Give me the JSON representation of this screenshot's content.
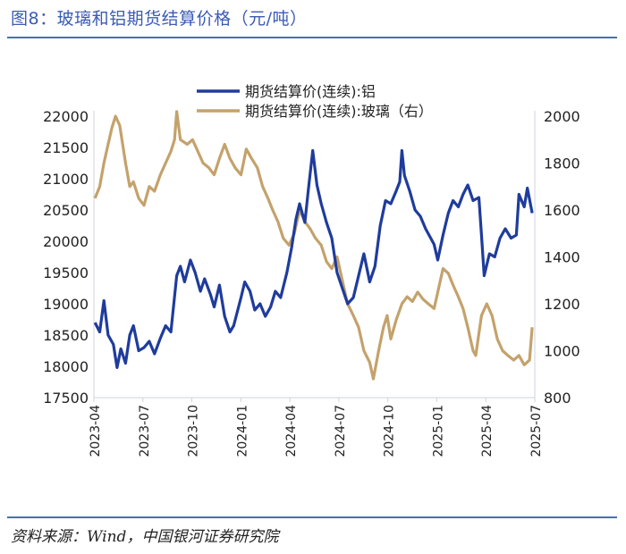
{
  "figure": {
    "title": "图8：玻璃和铝期货结算价格（元/吨）",
    "source": "资料来源：Wind，中国银河证券研究院"
  },
  "chart_data": {
    "type": "line",
    "x_tick_labels": [
      "2023-04",
      "2023-07",
      "2023-10",
      "2024-01",
      "2024-04",
      "2024-07",
      "2024-10",
      "2025-01",
      "2025-04",
      "2025-07"
    ],
    "x_range": [
      "2023-04-01",
      "2025-07-15"
    ],
    "y_left": {
      "min": 17500,
      "max": 22000,
      "ticks": [
        17500,
        18000,
        18500,
        19000,
        19500,
        20000,
        20500,
        21000,
        21500,
        22000
      ]
    },
    "y_right": {
      "min": 800,
      "max": 2000,
      "ticks": [
        800,
        1000,
        1200,
        1400,
        1600,
        1800,
        2000
      ]
    },
    "legend_position": "top",
    "series": [
      {
        "name": "期货结算价(连续):铝",
        "axis": "left",
        "color": "#1f3c9c",
        "points": [
          [
            "2023-04-03",
            18700
          ],
          [
            "2023-04-12",
            18550
          ],
          [
            "2023-04-20",
            19050
          ],
          [
            "2023-04-28",
            18500
          ],
          [
            "2023-05-08",
            18350
          ],
          [
            "2023-05-15",
            17980
          ],
          [
            "2023-05-22",
            18280
          ],
          [
            "2023-05-31",
            18050
          ],
          [
            "2023-06-08",
            18500
          ],
          [
            "2023-06-15",
            18650
          ],
          [
            "2023-06-25",
            18250
          ],
          [
            "2023-07-05",
            18300
          ],
          [
            "2023-07-15",
            18400
          ],
          [
            "2023-07-25",
            18200
          ],
          [
            "2023-08-05",
            18450
          ],
          [
            "2023-08-15",
            18650
          ],
          [
            "2023-08-25",
            18550
          ],
          [
            "2023-09-05",
            19450
          ],
          [
            "2023-09-12",
            19600
          ],
          [
            "2023-09-20",
            19350
          ],
          [
            "2023-10-01",
            19700
          ],
          [
            "2023-10-10",
            19500
          ],
          [
            "2023-10-20",
            19200
          ],
          [
            "2023-10-28",
            19400
          ],
          [
            "2023-11-08",
            19150
          ],
          [
            "2023-11-15",
            18950
          ],
          [
            "2023-11-25",
            19300
          ],
          [
            "2023-12-05",
            18800
          ],
          [
            "2023-12-15",
            18550
          ],
          [
            "2023-12-22",
            18650
          ],
          [
            "2024-01-05",
            19100
          ],
          [
            "2024-01-12",
            19350
          ],
          [
            "2024-01-22",
            19200
          ],
          [
            "2024-01-31",
            18900
          ],
          [
            "2024-02-10",
            19000
          ],
          [
            "2024-02-20",
            18800
          ],
          [
            "2024-03-01",
            18950
          ],
          [
            "2024-03-10",
            19200
          ],
          [
            "2024-03-20",
            19100
          ],
          [
            "2024-04-01",
            19500
          ],
          [
            "2024-04-10",
            19900
          ],
          [
            "2024-04-18",
            20350
          ],
          [
            "2024-04-25",
            20600
          ],
          [
            "2024-05-05",
            20300
          ],
          [
            "2024-05-12",
            20850
          ],
          [
            "2024-05-20",
            21450
          ],
          [
            "2024-05-28",
            20900
          ],
          [
            "2024-06-05",
            20600
          ],
          [
            "2024-06-15",
            20300
          ],
          [
            "2024-06-25",
            20050
          ],
          [
            "2024-07-05",
            19500
          ],
          [
            "2024-07-15",
            19250
          ],
          [
            "2024-07-25",
            19000
          ],
          [
            "2024-08-05",
            19100
          ],
          [
            "2024-08-15",
            19450
          ],
          [
            "2024-08-25",
            19800
          ],
          [
            "2024-09-05",
            19350
          ],
          [
            "2024-09-15",
            19600
          ],
          [
            "2024-09-25",
            20250
          ],
          [
            "2024-10-05",
            20650
          ],
          [
            "2024-10-15",
            20600
          ],
          [
            "2024-10-25",
            20800
          ],
          [
            "2024-11-01",
            20950
          ],
          [
            "2024-11-05",
            21450
          ],
          [
            "2024-11-10",
            21050
          ],
          [
            "2024-11-20",
            20800
          ],
          [
            "2024-11-30",
            20500
          ],
          [
            "2024-12-10",
            20400
          ],
          [
            "2024-12-20",
            20200
          ],
          [
            "2025-01-05",
            19950
          ],
          [
            "2025-01-12",
            19700
          ],
          [
            "2025-01-22",
            20100
          ],
          [
            "2025-02-01",
            20450
          ],
          [
            "2025-02-10",
            20650
          ],
          [
            "2025-02-20",
            20550
          ],
          [
            "2025-03-01",
            20750
          ],
          [
            "2025-03-10",
            20900
          ],
          [
            "2025-03-20",
            20650
          ],
          [
            "2025-03-31",
            20700
          ],
          [
            "2025-04-05",
            20100
          ],
          [
            "2025-04-10",
            19450
          ],
          [
            "2025-04-20",
            19800
          ],
          [
            "2025-04-30",
            19750
          ],
          [
            "2025-05-10",
            20050
          ],
          [
            "2025-05-20",
            20200
          ],
          [
            "2025-05-31",
            20050
          ],
          [
            "2025-06-10",
            20100
          ],
          [
            "2025-06-15",
            20750
          ],
          [
            "2025-06-25",
            20550
          ],
          [
            "2025-07-01",
            20850
          ],
          [
            "2025-07-10",
            20450
          ]
        ]
      },
      {
        "name": "期货结算价(连续):玻璃（右）",
        "axis": "right",
        "color": "#c4a26c",
        "points": [
          [
            "2023-04-03",
            1650
          ],
          [
            "2023-04-12",
            1700
          ],
          [
            "2023-04-20",
            1800
          ],
          [
            "2023-04-28",
            1880
          ],
          [
            "2023-05-05",
            1950
          ],
          [
            "2023-05-12",
            2000
          ],
          [
            "2023-05-20",
            1960
          ],
          [
            "2023-05-31",
            1800
          ],
          [
            "2023-06-08",
            1700
          ],
          [
            "2023-06-15",
            1720
          ],
          [
            "2023-06-25",
            1650
          ],
          [
            "2023-07-05",
            1620
          ],
          [
            "2023-07-15",
            1700
          ],
          [
            "2023-07-25",
            1680
          ],
          [
            "2023-08-05",
            1750
          ],
          [
            "2023-08-15",
            1800
          ],
          [
            "2023-08-25",
            1850
          ],
          [
            "2023-09-01",
            1900
          ],
          [
            "2023-09-05",
            2020
          ],
          [
            "2023-09-12",
            1900
          ],
          [
            "2023-09-25",
            1880
          ],
          [
            "2023-10-05",
            1900
          ],
          [
            "2023-10-15",
            1850
          ],
          [
            "2023-10-25",
            1800
          ],
          [
            "2023-11-05",
            1780
          ],
          [
            "2023-11-15",
            1750
          ],
          [
            "2023-11-25",
            1820
          ],
          [
            "2023-12-05",
            1880
          ],
          [
            "2023-12-15",
            1820
          ],
          [
            "2023-12-25",
            1780
          ],
          [
            "2024-01-05",
            1750
          ],
          [
            "2024-01-15",
            1860
          ],
          [
            "2024-01-25",
            1820
          ],
          [
            "2024-02-05",
            1780
          ],
          [
            "2024-02-15",
            1700
          ],
          [
            "2024-02-25",
            1650
          ],
          [
            "2024-03-05",
            1600
          ],
          [
            "2024-03-15",
            1550
          ],
          [
            "2024-03-25",
            1480
          ],
          [
            "2024-04-05",
            1450
          ],
          [
            "2024-04-15",
            1500
          ],
          [
            "2024-04-25",
            1600
          ],
          [
            "2024-05-05",
            1550
          ],
          [
            "2024-05-15",
            1520
          ],
          [
            "2024-05-25",
            1480
          ],
          [
            "2024-06-05",
            1450
          ],
          [
            "2024-06-15",
            1380
          ],
          [
            "2024-06-25",
            1350
          ],
          [
            "2024-07-05",
            1400
          ],
          [
            "2024-07-15",
            1300
          ],
          [
            "2024-07-25",
            1200
          ],
          [
            "2024-08-05",
            1150
          ],
          [
            "2024-08-15",
            1100
          ],
          [
            "2024-08-25",
            1000
          ],
          [
            "2024-09-05",
            950
          ],
          [
            "2024-09-12",
            880
          ],
          [
            "2024-09-22",
            1000
          ],
          [
            "2024-10-01",
            1100
          ],
          [
            "2024-10-08",
            1150
          ],
          [
            "2024-10-15",
            1050
          ],
          [
            "2024-10-25",
            1130
          ],
          [
            "2024-11-05",
            1200
          ],
          [
            "2024-11-15",
            1230
          ],
          [
            "2024-11-25",
            1210
          ],
          [
            "2024-12-05",
            1250
          ],
          [
            "2024-12-15",
            1220
          ],
          [
            "2024-12-25",
            1200
          ],
          [
            "2025-01-05",
            1180
          ],
          [
            "2025-01-15",
            1280
          ],
          [
            "2025-01-22",
            1350
          ],
          [
            "2025-02-01",
            1330
          ],
          [
            "2025-02-10",
            1280
          ],
          [
            "2025-02-20",
            1230
          ],
          [
            "2025-03-01",
            1180
          ],
          [
            "2025-03-10",
            1100
          ],
          [
            "2025-03-20",
            1000
          ],
          [
            "2025-03-25",
            980
          ],
          [
            "2025-04-05",
            1150
          ],
          [
            "2025-04-15",
            1200
          ],
          [
            "2025-04-25",
            1150
          ],
          [
            "2025-05-05",
            1050
          ],
          [
            "2025-05-15",
            1000
          ],
          [
            "2025-05-25",
            980
          ],
          [
            "2025-06-05",
            960
          ],
          [
            "2025-06-15",
            980
          ],
          [
            "2025-06-25",
            940
          ],
          [
            "2025-07-05",
            960
          ],
          [
            "2025-07-10",
            1100
          ]
        ]
      }
    ]
  }
}
